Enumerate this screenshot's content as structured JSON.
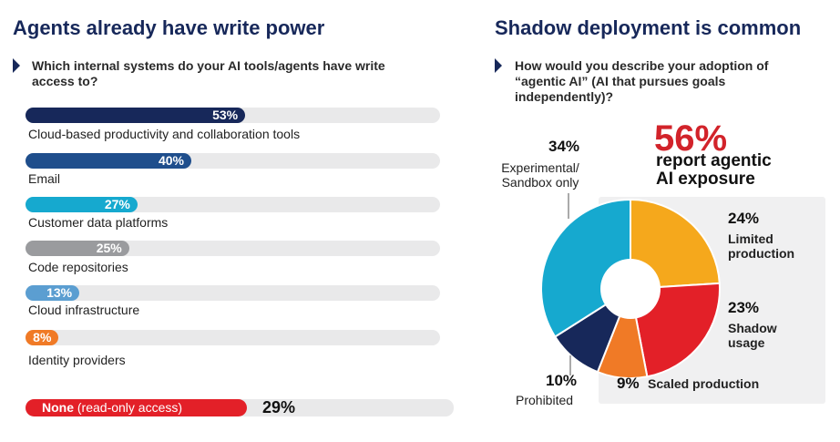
{
  "left": {
    "title": "Agents already have write power",
    "question": "Which internal systems do your AI tools/agents have write access to?"
  },
  "right": {
    "title": "Shadow deployment is common",
    "question": "How would you describe your adoption of “agentic AI” (AI that pursues goals independently)?",
    "headline_pct": "56%",
    "headline_caption": "report agentic AI exposure"
  },
  "chart_data": [
    {
      "type": "bar",
      "orientation": "horizontal",
      "title": "Which internal systems do your AI tools/agents have write access to?",
      "categories": [
        "Cloud-based productivity and collaboration tools",
        "Email",
        "Customer data platforms",
        "Code repositories",
        "Cloud infrastructure",
        "Identity providers",
        "None (read-only access)"
      ],
      "values": [
        53,
        40,
        27,
        25,
        13,
        8,
        29
      ],
      "value_labels": [
        "53%",
        "40%",
        "27%",
        "25%",
        "13%",
        "8%",
        "29%"
      ],
      "colors": [
        "#17285a",
        "#1f4e8c",
        "#16a9cf",
        "#9a9b9e",
        "#5b9ed1",
        "#f07a26",
        "#e32028"
      ],
      "none_label_bold": "None",
      "none_label_rest": "(read-only access)",
      "xlim": [
        0,
        100
      ]
    },
    {
      "type": "pie",
      "donut": true,
      "title": "How would you describe your adoption of “agentic AI” (AI that pursues goals independently)?",
      "slices": [
        {
          "name": "Limited production",
          "value": 24,
          "label": "24%",
          "color": "#f5a81c"
        },
        {
          "name": "Shadow usage",
          "value": 23,
          "label": "23%",
          "color": "#e32028"
        },
        {
          "name": "Scaled production",
          "value": 9,
          "label": "9%",
          "color": "#f07a26"
        },
        {
          "name": "Prohibited",
          "value": 10,
          "label": "10%",
          "color": "#17285a"
        },
        {
          "name": "Experimental/ Sandbox only",
          "value": 34,
          "label": "34%",
          "color": "#16a9cf"
        }
      ],
      "label_lines": {
        "limited": [
          "Limited",
          "production"
        ],
        "shadow": [
          "Shadow",
          "usage"
        ],
        "scaled": "Scaled production",
        "prohibited": "Prohibited",
        "experimental": [
          "Experimental/",
          "Sandbox only"
        ]
      }
    }
  ]
}
